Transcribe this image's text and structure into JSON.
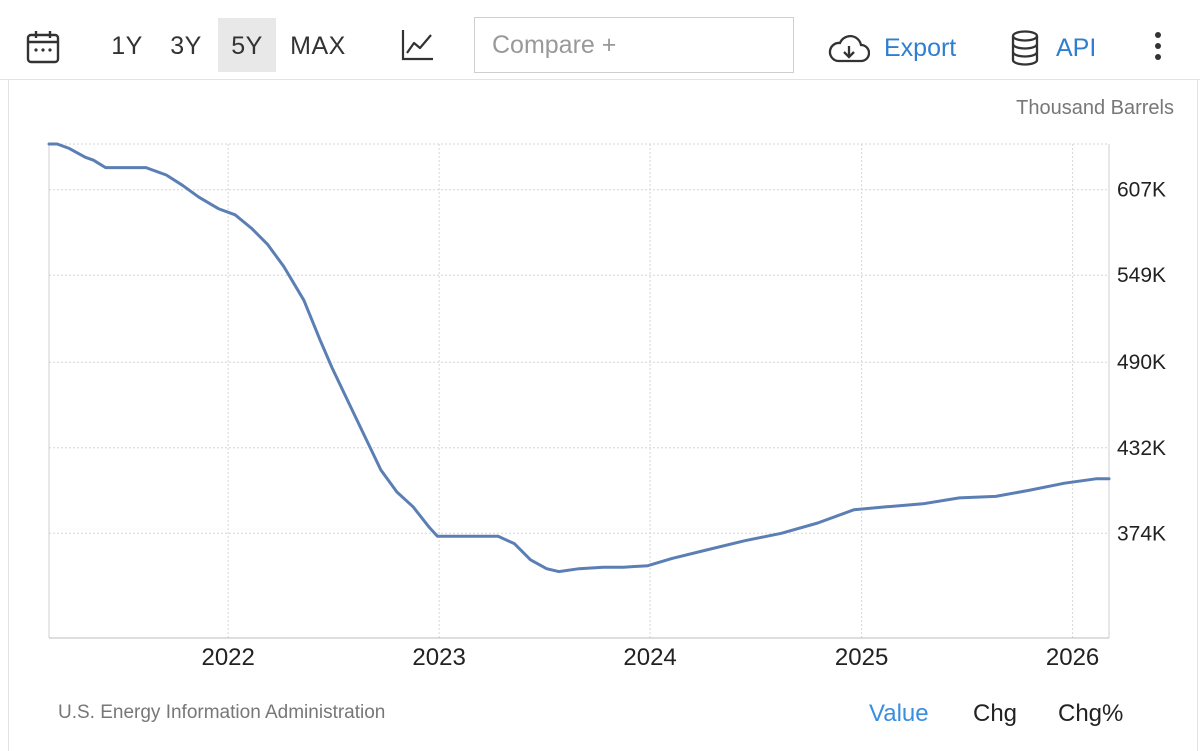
{
  "toolbar": {
    "ranges": [
      "1Y",
      "3Y",
      "5Y",
      "MAX"
    ],
    "active_range": "5Y",
    "compare_placeholder": "Compare +",
    "export_label": "Export",
    "api_label": "API"
  },
  "unit_label": "Thousand Barrels",
  "source": "U.S. Energy Information Administration",
  "tabs": {
    "value": "Value",
    "chg": "Chg",
    "chg_pct": "Chg%"
  },
  "colors": {
    "line": "#5b7fb5",
    "accent": "#2f7fd1",
    "grid": "#d6d6d6"
  },
  "chart_data": {
    "type": "line",
    "title": "",
    "xlabel": "",
    "ylabel": "Thousand Barrels",
    "ylim": [
      303,
      638
    ],
    "yticks": [
      374,
      432,
      490,
      549,
      607
    ],
    "ytick_labels": [
      "374K",
      "432K",
      "490K",
      "549K",
      "607K"
    ],
    "xticks": [
      "2022",
      "2023",
      "2024",
      "2025",
      "2026"
    ],
    "grid": true,
    "series": [
      {
        "values": [
          [
            "2021-02-25",
            638
          ],
          [
            "2021-03-11",
            638
          ],
          [
            "2021-04-01",
            635
          ],
          [
            "2021-04-29",
            629
          ],
          [
            "2021-05-13",
            627
          ],
          [
            "2021-06-03",
            622
          ],
          [
            "2021-06-10",
            622
          ],
          [
            "2021-07-08",
            622
          ],
          [
            "2021-08-12",
            622
          ],
          [
            "2021-08-19",
            621
          ],
          [
            "2021-09-16",
            617
          ],
          [
            "2021-10-14",
            610
          ],
          [
            "2021-11-11",
            602
          ],
          [
            "2021-12-16",
            594
          ],
          [
            "2022-01-13",
            590
          ],
          [
            "2022-02-10",
            581
          ],
          [
            "2022-03-10",
            570
          ],
          [
            "2022-04-07",
            555
          ],
          [
            "2022-05-12",
            532
          ],
          [
            "2022-06-09",
            505
          ],
          [
            "2022-06-30",
            486
          ],
          [
            "2022-07-28",
            463
          ],
          [
            "2022-08-25",
            440
          ],
          [
            "2022-09-22",
            417
          ],
          [
            "2022-10-20",
            402
          ],
          [
            "2022-11-17",
            392
          ],
          [
            "2022-12-15",
            378
          ],
          [
            "2022-12-29",
            372
          ],
          [
            "2023-02-09",
            372
          ],
          [
            "2023-03-16",
            372
          ],
          [
            "2023-04-13",
            372
          ],
          [
            "2023-05-11",
            367
          ],
          [
            "2023-06-08",
            356
          ],
          [
            "2023-07-06",
            350
          ],
          [
            "2023-07-27",
            348
          ],
          [
            "2023-08-31",
            350
          ],
          [
            "2023-10-12",
            351
          ],
          [
            "2023-11-16",
            351
          ],
          [
            "2023-12-28",
            352
          ],
          [
            "2024-02-08",
            357
          ],
          [
            "2024-04-11",
            363
          ],
          [
            "2024-06-13",
            369
          ],
          [
            "2024-08-15",
            374
          ],
          [
            "2024-10-17",
            381
          ],
          [
            "2024-12-19",
            390
          ],
          [
            "2025-02-13",
            392
          ],
          [
            "2025-04-17",
            394
          ],
          [
            "2025-06-19",
            398
          ],
          [
            "2025-08-21",
            399
          ],
          [
            "2025-10-16",
            403
          ],
          [
            "2025-12-18",
            408
          ],
          [
            "2026-02-12",
            411
          ],
          [
            "2026-03-05",
            411
          ]
        ]
      }
    ]
  }
}
